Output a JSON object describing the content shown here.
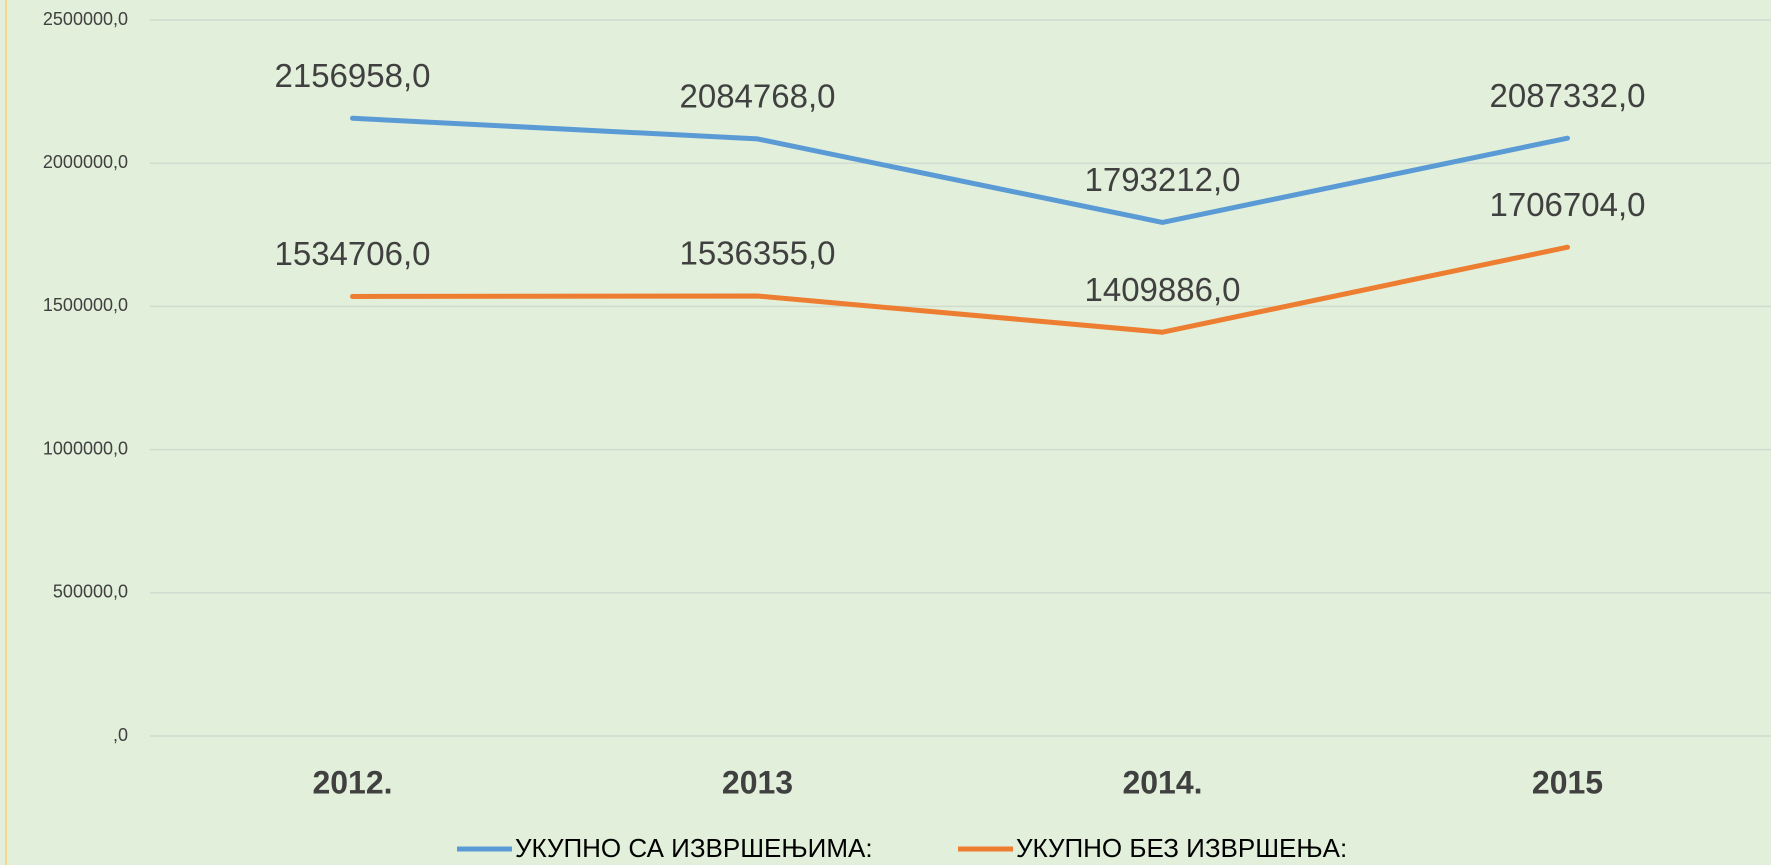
{
  "chart_data": {
    "type": "line",
    "categories": [
      "2012.",
      "2013",
      "2014.",
      "2015"
    ],
    "series": [
      {
        "name": "УКУПНО СА ИЗВРШЕЊИМА:",
        "color": "#5b9bd5",
        "values": [
          2156958,
          2084768,
          1793212,
          2087332
        ],
        "value_labels": [
          "2156958,0",
          "2084768,0",
          "1793212,0",
          "2087332,0"
        ]
      },
      {
        "name": "УКУПНО БЕЗ ИЗВРШЕЊА:",
        "color": "#ed7d31",
        "values": [
          1534706,
          1536355,
          1409886,
          1706704
        ],
        "value_labels": [
          "1534706,0",
          "1536355,0",
          "1409886,0",
          "1706704,0"
        ]
      }
    ],
    "ylim": [
      0,
      2500000
    ],
    "yticks": [
      {
        "value": 0,
        "label": ",0"
      },
      {
        "value": 500000,
        "label": "500000,0"
      },
      {
        "value": 1000000,
        "label": "1000000,0"
      },
      {
        "value": 1500000,
        "label": "1500000,0"
      },
      {
        "value": 2000000,
        "label": "2000000,0"
      },
      {
        "value": 2500000,
        "label": "2500000,0"
      }
    ],
    "grid": true,
    "legend": "bottom"
  }
}
